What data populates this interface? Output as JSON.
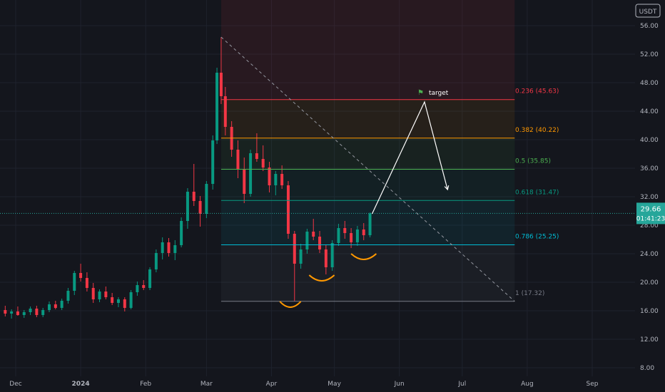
{
  "chart_data": {
    "type": "candlestick",
    "currency_label": "USDT",
    "y_axis": {
      "ticks": [
        "8.00",
        "12.00",
        "16.00",
        "20.00",
        "24.00",
        "28.00",
        "32.00",
        "36.00",
        "40.00",
        "44.00",
        "48.00",
        "52.00",
        "56.00"
      ],
      "range": [
        6.4,
        57.6
      ]
    },
    "x_axis": {
      "ticks": [
        "Dec",
        "2024",
        "Feb",
        "Mar",
        "Apr",
        "May",
        "Jun",
        "Jul",
        "Aug",
        "Sep"
      ],
      "tick_dates": [
        "2023-12-01",
        "2024-01-01",
        "2024-02-01",
        "2024-03-01",
        "2024-04-01",
        "2024-05-01",
        "2024-06-01",
        "2024-07-01",
        "2024-08-01",
        "2024-09-01"
      ]
    },
    "current_price": {
      "price": "29.66",
      "countdown": "01:41:23",
      "value": 29.66,
      "color": "#26a69a"
    },
    "fibonacci": {
      "start_date": "2024-03-08",
      "end_date": "2024-07-26",
      "levels": [
        {
          "label": "0.236 (45.63)",
          "price": 45.63,
          "color": "#f23645"
        },
        {
          "label": "0.382 (40.22)",
          "price": 40.22,
          "color": "#ff9800"
        },
        {
          "label": "0.5 (35.85)",
          "price": 35.85,
          "color": "#4caf50"
        },
        {
          "label": "0.618 (31.47)",
          "price": 31.47,
          "color": "#089981"
        },
        {
          "label": "0.786 (25.25)",
          "price": 25.25,
          "color": "#00bcd4"
        },
        {
          "label": "1 (17.32)",
          "price": 17.32,
          "color": "#787b86"
        }
      ]
    },
    "trendline": {
      "from": {
        "date": "2024-03-08",
        "price": 54.4
      },
      "to": {
        "date": "2024-07-26",
        "price": 17.32
      }
    },
    "projection": [
      {
        "date": "2024-05-19",
        "price": 29.6
      },
      {
        "date": "2024-06-13",
        "price": 45.3
      },
      {
        "date": "2024-06-24",
        "price": 33.0
      }
    ],
    "target_label": "target",
    "pattern_arcs": [
      {
        "start": "2024-04-05",
        "end": "2024-04-15",
        "low": 16.5
      },
      {
        "start": "2024-04-19",
        "end": "2024-05-01",
        "low": 20.2
      },
      {
        "start": "2024-05-09",
        "end": "2024-05-21",
        "low": 23.2
      }
    ],
    "candles_ohlc": [
      [
        "2023-11-26",
        16.1,
        16.7,
        15.2,
        15.6
      ],
      [
        "2023-11-29",
        15.6,
        16.2,
        14.9,
        15.9
      ],
      [
        "2023-12-02",
        15.9,
        16.6,
        15.3,
        15.4
      ],
      [
        "2023-12-05",
        15.4,
        16.1,
        15.0,
        15.8
      ],
      [
        "2023-12-08",
        15.8,
        16.6,
        15.4,
        16.3
      ],
      [
        "2023-12-11",
        16.3,
        16.7,
        15.1,
        15.4
      ],
      [
        "2023-12-14",
        15.4,
        16.4,
        15.1,
        16.1
      ],
      [
        "2023-12-17",
        16.1,
        17.3,
        15.8,
        16.9
      ],
      [
        "2023-12-20",
        16.9,
        17.4,
        16.2,
        16.4
      ],
      [
        "2023-12-23",
        16.4,
        17.7,
        16.1,
        17.4
      ],
      [
        "2023-12-26",
        17.4,
        19.2,
        17.0,
        18.8
      ],
      [
        "2023-12-29",
        18.8,
        21.6,
        18.2,
        21.3
      ],
      [
        "2024-01-01",
        21.3,
        22.6,
        20.1,
        20.6
      ],
      [
        "2024-01-04",
        20.6,
        21.4,
        18.7,
        19.2
      ],
      [
        "2024-01-07",
        19.2,
        19.9,
        17.1,
        17.6
      ],
      [
        "2024-01-10",
        17.6,
        19.0,
        17.2,
        18.7
      ],
      [
        "2024-01-13",
        18.7,
        19.4,
        17.6,
        17.9
      ],
      [
        "2024-01-16",
        17.9,
        18.5,
        16.8,
        17.1
      ],
      [
        "2024-01-19",
        17.1,
        17.9,
        16.5,
        17.6
      ],
      [
        "2024-01-22",
        17.6,
        17.9,
        15.9,
        16.4
      ],
      [
        "2024-01-25",
        16.4,
        18.9,
        16.2,
        18.6
      ],
      [
        "2024-01-28",
        18.6,
        20.1,
        18.1,
        19.6
      ],
      [
        "2024-01-31",
        19.6,
        20.3,
        18.9,
        19.2
      ],
      [
        "2024-02-03",
        19.2,
        22.1,
        18.9,
        21.8
      ],
      [
        "2024-02-06",
        21.8,
        24.6,
        21.4,
        24.1
      ],
      [
        "2024-02-09",
        24.1,
        26.3,
        23.2,
        25.6
      ],
      [
        "2024-02-12",
        25.6,
        26.2,
        23.6,
        24.1
      ],
      [
        "2024-02-15",
        24.1,
        25.9,
        23.1,
        25.2
      ],
      [
        "2024-02-18",
        25.2,
        29.1,
        24.9,
        28.6
      ],
      [
        "2024-02-21",
        28.6,
        33.2,
        27.5,
        32.7
      ],
      [
        "2024-02-24",
        32.7,
        36.6,
        30.7,
        31.4
      ],
      [
        "2024-02-27",
        31.4,
        32.1,
        27.8,
        29.6
      ],
      [
        "2024-03-01",
        29.6,
        34.2,
        29.0,
        33.8
      ],
      [
        "2024-03-04",
        33.8,
        40.6,
        33.0,
        39.9
      ],
      [
        "2024-03-06",
        39.9,
        50.1,
        39.4,
        49.4
      ],
      [
        "2024-03-08",
        49.4,
        54.4,
        45.0,
        46.1
      ],
      [
        "2024-03-10",
        46.1,
        47.4,
        40.6,
        41.8
      ],
      [
        "2024-03-13",
        41.8,
        42.6,
        37.6,
        38.6
      ],
      [
        "2024-03-16",
        38.6,
        39.9,
        34.6,
        35.8
      ],
      [
        "2024-03-19",
        35.8,
        37.5,
        31.1,
        32.4
      ],
      [
        "2024-03-22",
        32.4,
        38.6,
        32.0,
        38.1
      ],
      [
        "2024-03-25",
        38.1,
        40.9,
        36.9,
        37.3
      ],
      [
        "2024-03-28",
        37.3,
        39.2,
        35.6,
        36.1
      ],
      [
        "2024-03-31",
        36.1,
        36.9,
        32.6,
        33.6
      ],
      [
        "2024-04-03",
        33.6,
        35.6,
        32.2,
        35.2
      ],
      [
        "2024-04-06",
        35.2,
        36.4,
        33.1,
        33.6
      ],
      [
        "2024-04-09",
        33.6,
        34.2,
        26.1,
        26.8
      ],
      [
        "2024-04-12",
        26.8,
        27.2,
        17.32,
        22.6
      ],
      [
        "2024-04-15",
        22.6,
        25.4,
        21.9,
        24.6
      ],
      [
        "2024-04-18",
        24.6,
        27.5,
        24.0,
        27.1
      ],
      [
        "2024-04-21",
        27.1,
        28.9,
        25.9,
        26.4
      ],
      [
        "2024-04-24",
        26.4,
        27.2,
        24.1,
        24.6
      ],
      [
        "2024-04-27",
        24.6,
        25.2,
        21.1,
        22.1
      ],
      [
        "2024-04-30",
        22.1,
        25.9,
        21.6,
        25.5
      ],
      [
        "2024-05-03",
        25.5,
        28.2,
        25.1,
        27.6
      ],
      [
        "2024-05-06",
        27.6,
        28.6,
        26.1,
        26.9
      ],
      [
        "2024-05-09",
        26.9,
        27.6,
        24.8,
        25.6
      ],
      [
        "2024-05-12",
        25.6,
        27.9,
        25.1,
        27.4
      ],
      [
        "2024-05-15",
        27.4,
        28.3,
        25.9,
        26.6
      ],
      [
        "2024-05-18",
        26.6,
        29.8,
        26.3,
        29.66
      ]
    ]
  }
}
